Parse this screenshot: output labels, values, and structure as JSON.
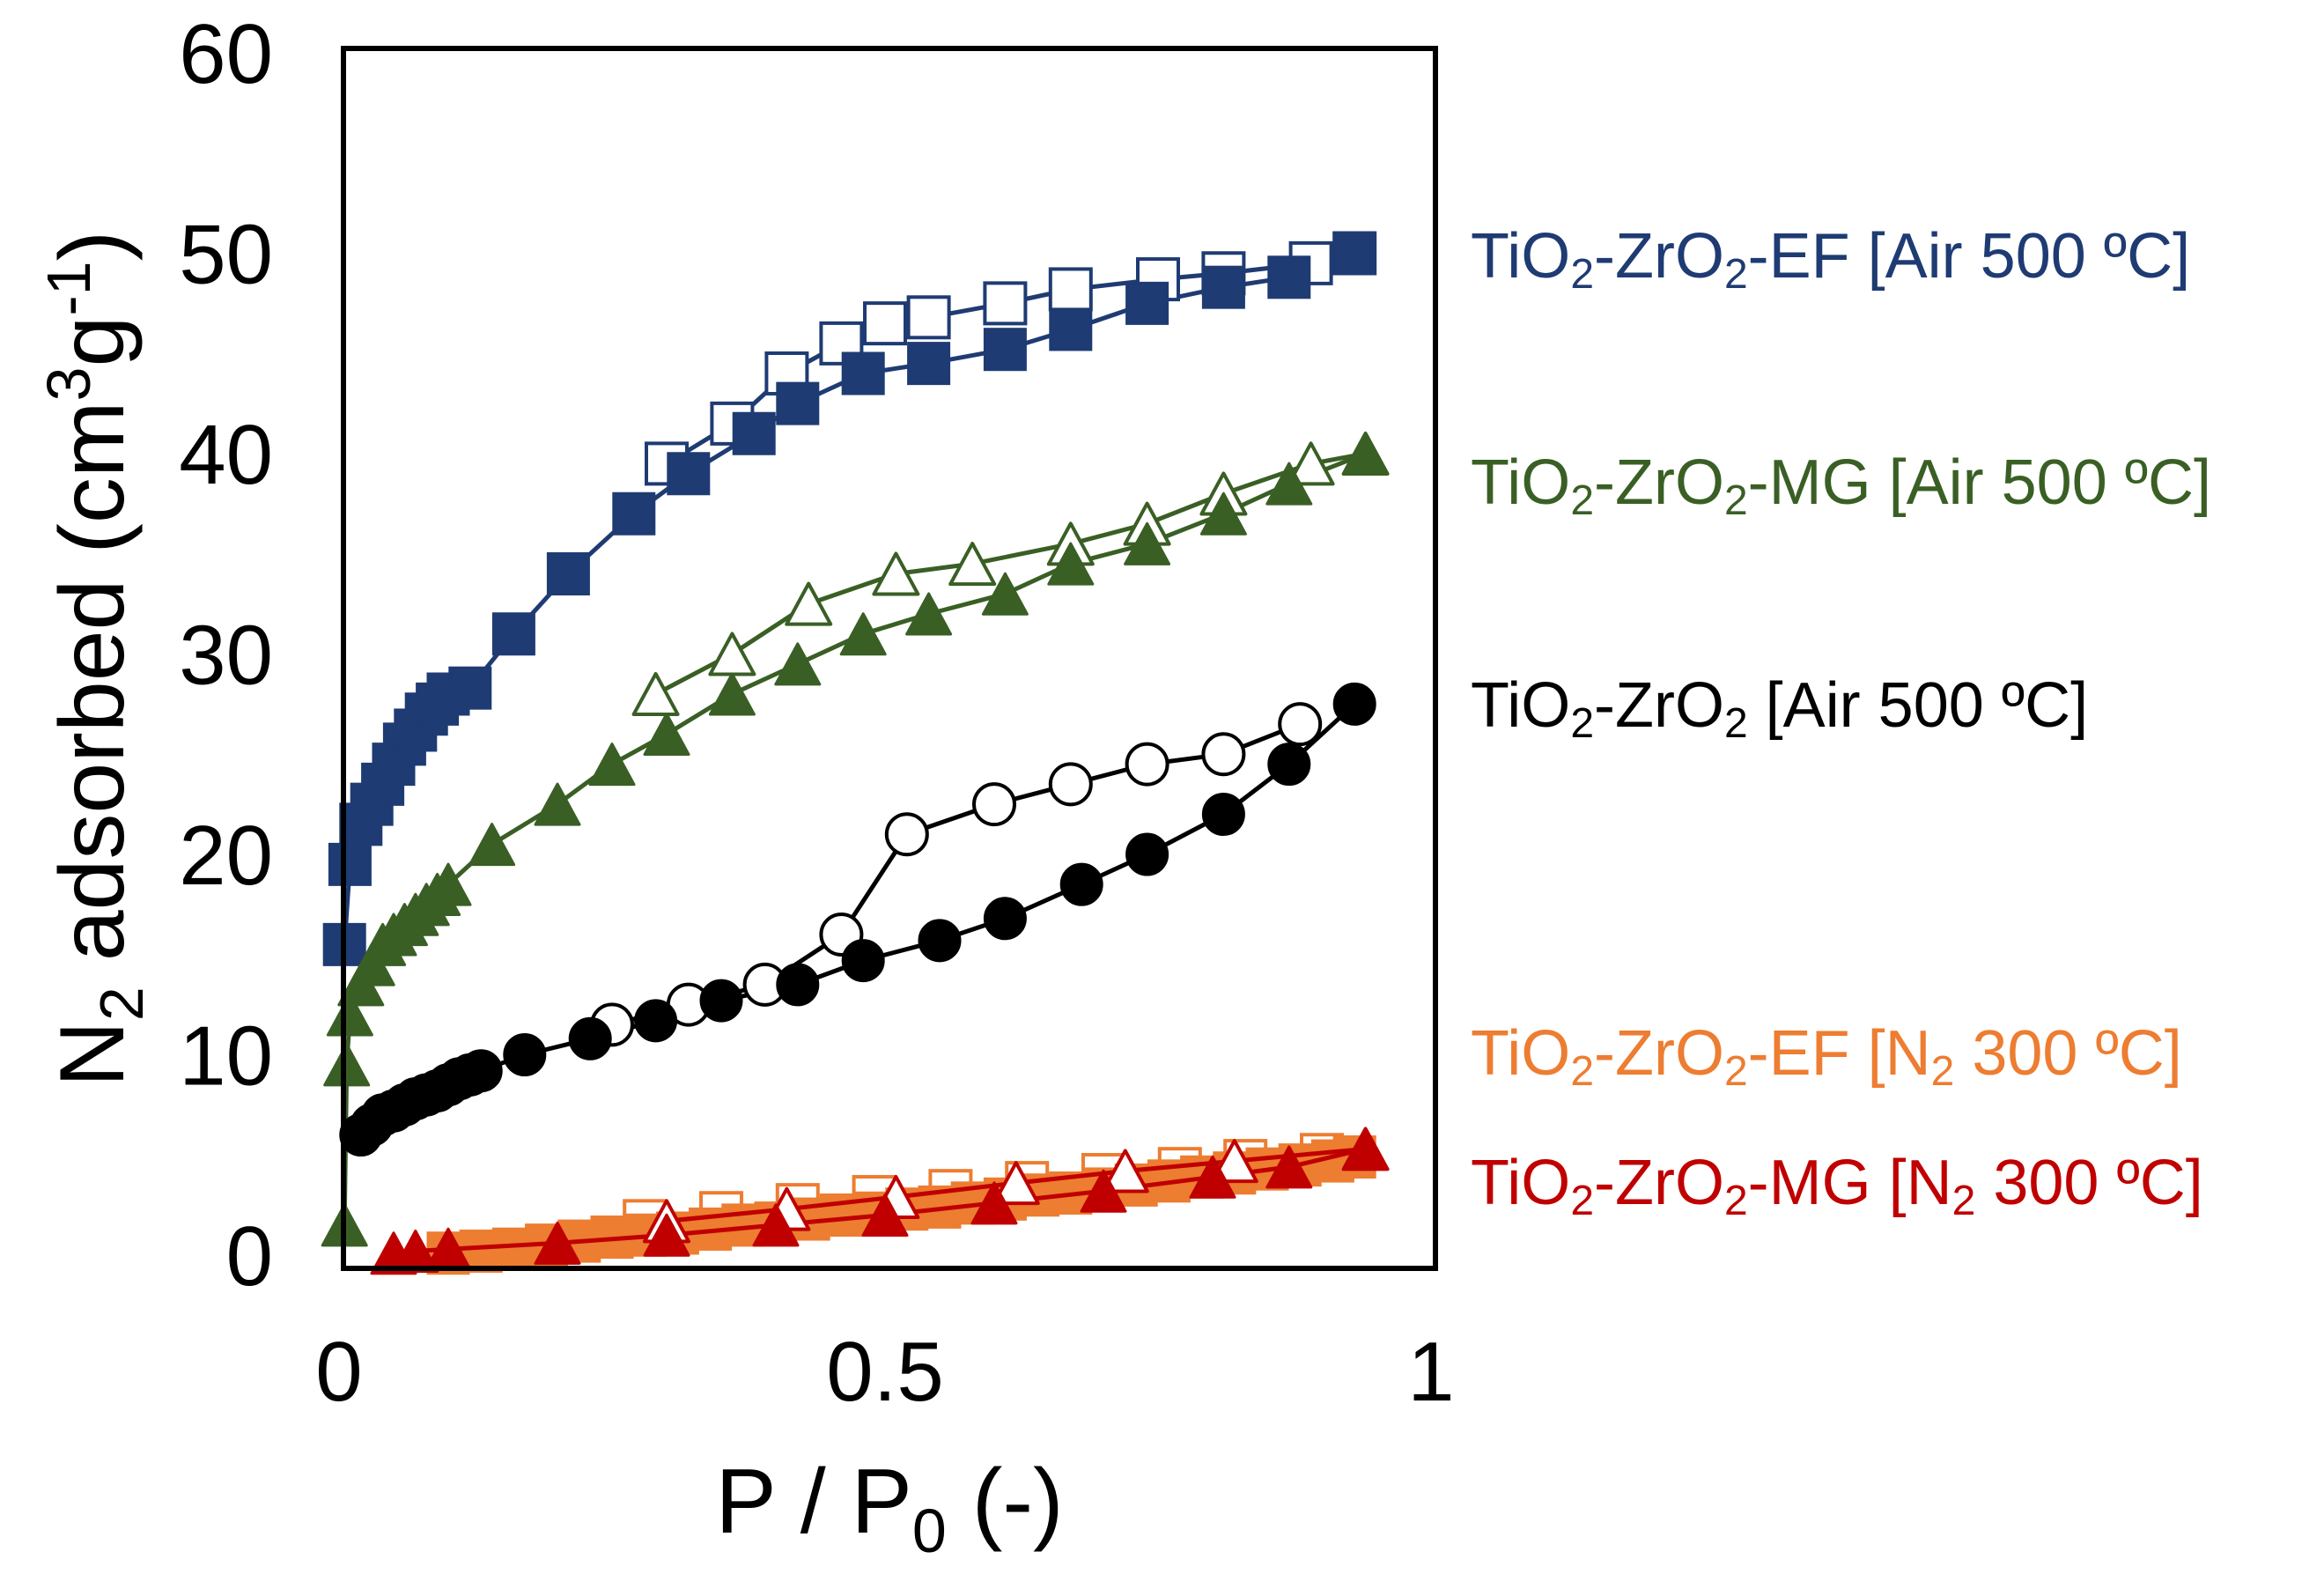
{
  "chart_data": {
    "type": "scatter",
    "title": "",
    "xlabel": {
      "main": "P / P",
      "sub": "0",
      "tail": " (-)"
    },
    "ylabel": {
      "n": "N",
      "n_sub": "2",
      "mid": " adsorbed (cm",
      "sup1": "3",
      "g": "g",
      "sup2": "-1",
      "end": ")"
    },
    "xlim": [
      0,
      1
    ],
    "ylim": [
      0,
      60
    ],
    "xticks": [
      {
        "value": 0,
        "label": "0"
      },
      {
        "value": 0.5,
        "label": "0.5"
      },
      {
        "value": 1,
        "label": "1"
      }
    ],
    "yticks": [
      {
        "value": 0,
        "label": "0"
      },
      {
        "value": 10,
        "label": "10"
      },
      {
        "value": 20,
        "label": "20"
      },
      {
        "value": 30,
        "label": "30"
      },
      {
        "value": 40,
        "label": "40"
      },
      {
        "value": 50,
        "label": "50"
      },
      {
        "value": 60,
        "label": "60"
      }
    ],
    "grid": false,
    "series": [
      {
        "id": "ef-air",
        "legend": {
          "p1": "TiO",
          "s1": "2",
          "p2": "-ZrO",
          "s2": "2",
          "p3": "-EF [Air 500 ºC]"
        },
        "color": "#1f3b73",
        "marker": "square",
        "adsorption": {
          "x": [
            0.005,
            0.01,
            0.02,
            0.03,
            0.04,
            0.05,
            0.06,
            0.07,
            0.08,
            0.09,
            0.1,
            0.12,
            0.16,
            0.21,
            0.27,
            0.32,
            0.38,
            0.42,
            0.48,
            0.54,
            0.61,
            0.67,
            0.74,
            0.81,
            0.87,
            0.93
          ],
          "y": [
            15.5,
            19.5,
            21.5,
            22.5,
            23.5,
            24.5,
            25.5,
            26.2,
            27,
            27.5,
            28,
            28.3,
            31,
            34,
            37,
            39,
            41,
            42.5,
            44,
            44.5,
            45.2,
            46.2,
            47.5,
            48.3,
            48.8,
            50
          ]
        },
        "desorption": {
          "x": [
            0.93,
            0.89,
            0.81,
            0.75,
            0.67,
            0.61,
            0.54,
            0.5,
            0.46,
            0.41,
            0.36,
            0.3
          ],
          "y": [
            50,
            49.5,
            49,
            48.7,
            48.2,
            47.5,
            46.8,
            46.5,
            45.5,
            44,
            41.5,
            39.5
          ]
        }
      },
      {
        "id": "mg-air",
        "legend": {
          "p1": "TiO",
          "s1": "2",
          "p2": "-ZrO",
          "s2": "2",
          "p3": "-MG [Air 500 ºC]"
        },
        "color": "#3a5f25",
        "marker": "triangle",
        "adsorption": {
          "x": [
            0.005,
            0.007,
            0.01,
            0.02,
            0.03,
            0.04,
            0.05,
            0.06,
            0.07,
            0.08,
            0.09,
            0.1,
            0.14,
            0.2,
            0.25,
            0.3,
            0.36,
            0.42,
            0.48,
            0.54,
            0.61,
            0.67,
            0.74,
            0.81,
            0.87,
            0.94
          ],
          "y": [
            1.5,
            9.5,
            12,
            13.5,
            14.5,
            15.5,
            16,
            16.5,
            17,
            17.5,
            18,
            18.5,
            20.5,
            22.5,
            24.5,
            26,
            28,
            29.5,
            31,
            32,
            33,
            34.5,
            35.5,
            37,
            38.5,
            40
          ]
        },
        "desorption": {
          "x": [
            0.94,
            0.89,
            0.81,
            0.74,
            0.67,
            0.58,
            0.51,
            0.43,
            0.36,
            0.29
          ],
          "y": [
            40,
            39.5,
            38,
            36.5,
            35.5,
            34.5,
            34,
            32.5,
            30,
            28
          ]
        }
      },
      {
        "id": "plain-air",
        "legend": {
          "p1": "TiO",
          "s1": "2",
          "p2": "-ZrO",
          "s2": "2",
          "p3": " [Air 500 ºC]"
        },
        "color": "#000000",
        "marker": "circle",
        "adsorption": {
          "x": [
            0.02,
            0.03,
            0.04,
            0.05,
            0.06,
            0.07,
            0.08,
            0.09,
            0.1,
            0.11,
            0.12,
            0.13,
            0.17,
            0.23,
            0.29,
            0.35,
            0.42,
            0.48,
            0.55,
            0.61,
            0.68,
            0.74,
            0.81,
            0.87,
            0.93
          ],
          "y": [
            6,
            6.5,
            7,
            7.2,
            7.5,
            7.8,
            8,
            8.2,
            8.5,
            8.8,
            9,
            9.2,
            10,
            10.8,
            11.7,
            12.7,
            13.5,
            14.7,
            15.7,
            16.8,
            18.5,
            20,
            22,
            24.5,
            27.5
          ]
        },
        "desorption": {
          "x": [
            0.88,
            0.81,
            0.74,
            0.67,
            0.6,
            0.52,
            0.46,
            0.39,
            0.32,
            0.25
          ],
          "y": [
            26.5,
            25,
            24.5,
            23.5,
            22.5,
            21,
            16,
            13.5,
            12.5,
            11.5
          ]
        }
      },
      {
        "id": "ef-n2",
        "legend": {
          "p1": "TiO",
          "s1": "2",
          "p2": "-ZrO",
          "s2": "2",
          "p3": "-EF [N",
          "s3": "2",
          "p4": " 300 ºC]"
        },
        "color": "#ed7d31",
        "marker": "square",
        "adsorption": {
          "x": [
            0.1,
            0.13,
            0.16,
            0.19,
            0.22,
            0.25,
            0.28,
            0.31,
            0.34,
            0.37,
            0.4,
            0.43,
            0.46,
            0.49,
            0.52,
            0.55,
            0.58,
            0.61,
            0.64,
            0.67,
            0.7,
            0.73,
            0.76,
            0.79,
            0.82,
            0.85,
            0.88,
            0.91,
            0.93
          ],
          "y": [
            0.1,
            0.2,
            0.3,
            0.5,
            0.7,
            0.9,
            1.0,
            1.1,
            1.3,
            1.5,
            1.6,
            1.8,
            2.0,
            2.1,
            2.3,
            2.4,
            2.6,
            2.8,
            3.0,
            3.1,
            3.3,
            3.5,
            3.7,
            3.9,
            4.1,
            4.3,
            4.5,
            4.7,
            4.9
          ]
        },
        "desorption": {
          "x": [
            0.9,
            0.83,
            0.77,
            0.7,
            0.63,
            0.56,
            0.49,
            0.42,
            0.35,
            0.28
          ],
          "y": [
            5,
            4.7,
            4.3,
            4,
            3.6,
            3.2,
            2.9,
            2.5,
            2.1,
            1.7
          ]
        }
      },
      {
        "id": "mg-n2",
        "legend": {
          "p1": "TiO",
          "s1": "2",
          "p2": "-ZrO",
          "s2": "2",
          "p3": "-MG [N",
          "s3": "2",
          "p4": " 300 ºC]"
        },
        "color": "#c00000",
        "marker": "triangle",
        "adsorption": {
          "x": [
            0.05,
            0.07,
            0.1,
            0.2,
            0.3,
            0.4,
            0.5,
            0.6,
            0.7,
            0.8,
            0.87,
            0.94
          ],
          "y": [
            0.1,
            0.2,
            0.3,
            0.6,
            1.0,
            1.5,
            2.0,
            2.6,
            3.2,
            3.9,
            4.4,
            5.3
          ]
        },
        "desorption": {
          "x": [
            0.94,
            0.82,
            0.72,
            0.62,
            0.51,
            0.41,
            0.3
          ],
          "y": [
            5.3,
            4.7,
            4.2,
            3.6,
            2.9,
            2.3,
            1.7
          ]
        }
      }
    ]
  }
}
